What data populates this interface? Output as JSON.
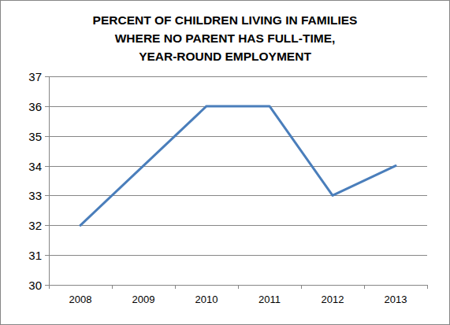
{
  "chart_data": {
    "type": "line",
    "title": [
      "PERCENT OF CHILDREN LIVING IN FAMILIES",
      "WHERE NO PARENT HAS FULL-TIME,",
      "YEAR-ROUND EMPLOYMENT"
    ],
    "categories": [
      "2008",
      "2009",
      "2010",
      "2011",
      "2012",
      "2013"
    ],
    "values": [
      32,
      34,
      36,
      36,
      33,
      34
    ],
    "color": "#4a7ebb",
    "ylim": [
      30,
      37
    ],
    "yticks": [
      30,
      31,
      32,
      33,
      34,
      35,
      36,
      37
    ],
    "grid": true
  }
}
